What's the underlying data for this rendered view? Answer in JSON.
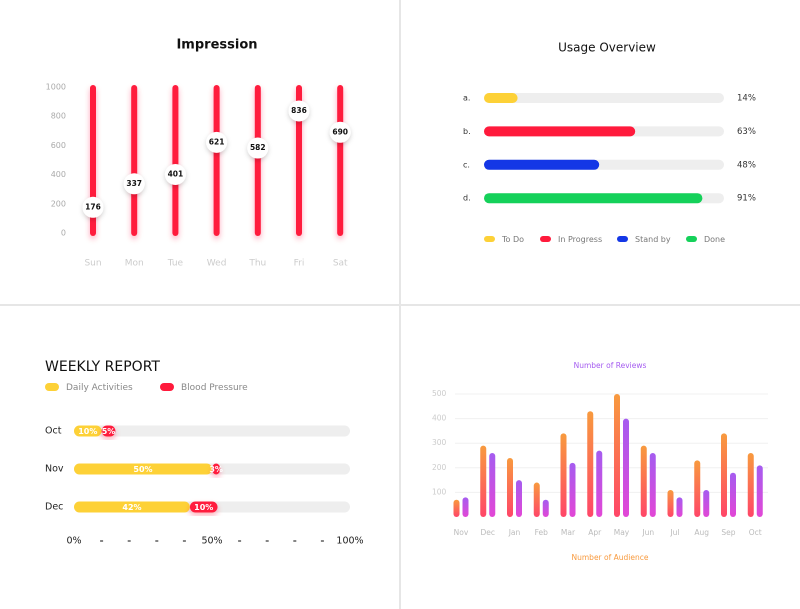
{
  "chart_data": [
    {
      "type": "dot",
      "title": "Impression",
      "color": "#ff1a3c",
      "categories": [
        "Sun",
        "Mon",
        "Tue",
        "Wed",
        "Thu",
        "Fri",
        "Sat"
      ],
      "values": [
        176,
        337,
        401,
        621,
        582,
        836,
        690
      ],
      "ylim": [
        0,
        1000
      ],
      "yticks": [
        0,
        200,
        400,
        600,
        800,
        1000
      ]
    },
    {
      "type": "progress",
      "title": "Usage Overview",
      "categories": [
        "a.",
        "b.",
        "c.",
        "d."
      ],
      "values": [
        14,
        63,
        48,
        91
      ],
      "value_labels": [
        "14%",
        "63%",
        "48%",
        "91%"
      ],
      "colors": [
        "#fdd137",
        "#ff1a3c",
        "#1437e6",
        "#15d15a"
      ],
      "legend": [
        "To Do",
        "In Progress",
        "Stand by",
        "Done"
      ],
      "xlim": [
        0,
        100
      ]
    },
    {
      "type": "stacked-bar",
      "title": "WEEKLY REPORT",
      "categories": [
        "Oct",
        "Nov",
        "Dec"
      ],
      "series": [
        {
          "name": "Daily Activities",
          "color": "#fdd137",
          "values": [
            10,
            50,
            42
          ],
          "value_labels": [
            "10%",
            "50%",
            "42%"
          ]
        },
        {
          "name": "Blood Pressure",
          "color": "#ff1a3c",
          "values": [
            5,
            3,
            10
          ],
          "value_labels": [
            "5%",
            "3%",
            "10%"
          ]
        }
      ],
      "xlim": [
        0,
        100
      ],
      "xticks": [
        {
          "value": 0,
          "label": "0%"
        },
        {
          "value": 50,
          "label": "50%"
        },
        {
          "value": 100,
          "label": "100%"
        }
      ],
      "minor_xticks": [
        10,
        20,
        30,
        40,
        60,
        70,
        80,
        90
      ]
    },
    {
      "type": "grouped-bar",
      "categories": [
        "Nov",
        "Dec",
        "Jan",
        "Feb",
        "Mar",
        "Apr",
        "May",
        "Jun",
        "Jul",
        "Aug",
        "Sep",
        "Oct"
      ],
      "series": [
        {
          "name": "Number of Audience",
          "color": "#f89a3e",
          "values": [
            70,
            290,
            240,
            140,
            340,
            430,
            500,
            290,
            110,
            230,
            340,
            260
          ]
        },
        {
          "name": "Number of Reviews",
          "color": "#a55cf0",
          "values": [
            80,
            260,
            150,
            70,
            220,
            270,
            400,
            260,
            80,
            110,
            180,
            210
          ]
        }
      ],
      "ylim": [
        0,
        520
      ],
      "yticks": [
        100,
        200,
        300,
        400,
        500
      ],
      "grid": true
    }
  ]
}
